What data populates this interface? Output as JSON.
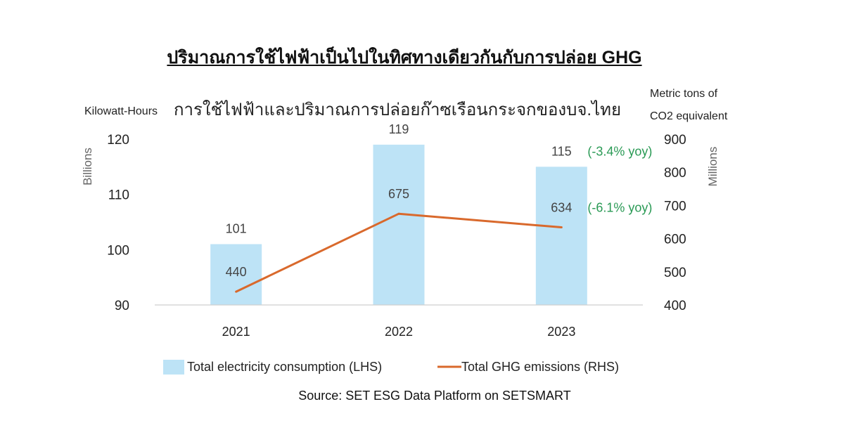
{
  "heading": "ปริมาณการใช้ไฟฟ้าเป็นไปในทิศทางเดียวกันกับการปล่อย GHG",
  "source": "Source: SET ESG Data Platform on SETSMART",
  "colors": {
    "bar": "#bde3f6",
    "line": "#d9692c",
    "yoy_text": "#2a9a55",
    "axis": "#cfcfcf"
  },
  "chart_data": {
    "type": "bar",
    "title": "การใช้ไฟฟ้าและปริมาณการปล่อยก๊าซเรือนกระจกของบจ.ไทย",
    "categories": [
      "2021",
      "2022",
      "2023"
    ],
    "y_left": {
      "label_top": "Kilowatt-Hours",
      "label_side": "Billions",
      "ticks": [
        "90",
        "100",
        "110",
        "120"
      ],
      "ylim": [
        90,
        120
      ]
    },
    "y_right": {
      "label_top_1": "Metric tons of",
      "label_top_2": "CO2 equivalent",
      "label_side": "Millions",
      "ticks": [
        "400",
        "500",
        "600",
        "700",
        "800",
        "900"
      ],
      "ylim": [
        400,
        900
      ]
    },
    "series": [
      {
        "name": "Total electricity consumption (LHS)",
        "type": "bar",
        "axis": "left",
        "values": [
          101,
          119,
          115
        ],
        "labels": [
          "101",
          "119",
          "115"
        ]
      },
      {
        "name": "Total GHG emissions (RHS)",
        "type": "line",
        "axis": "right",
        "values": [
          440,
          675,
          634
        ],
        "labels": [
          "440",
          "675",
          "634"
        ]
      }
    ],
    "annotations": [
      "(-3.4% yoy)",
      "(-6.1% yoy)"
    ],
    "legend_position": "bottom",
    "grid": false
  }
}
